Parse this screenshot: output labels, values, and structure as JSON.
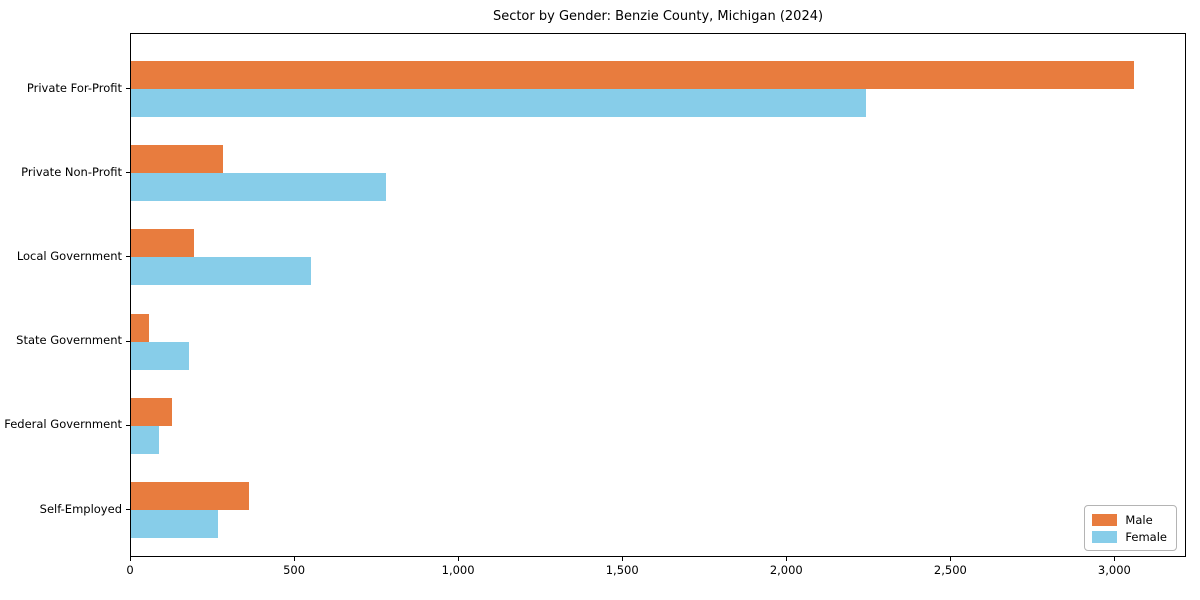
{
  "chart_data": {
    "type": "bar",
    "orientation": "horizontal",
    "title": "Sector by Gender: Benzie County, Michigan (2024)",
    "xlabel": "",
    "ylabel": "",
    "categories": [
      "Private For-Profit",
      "Private Non-Profit",
      "Local Government",
      "State Government",
      "Federal Government",
      "Self-Employed"
    ],
    "series": [
      {
        "name": "Male",
        "color": "#E87C3E",
        "values": [
          3057,
          281,
          192,
          55,
          124,
          358
        ]
      },
      {
        "name": "Female",
        "color": "#87CDE9",
        "values": [
          2239,
          776,
          548,
          176,
          85,
          264
        ]
      }
    ],
    "xlim": [
      0,
      3212
    ],
    "xticks": [
      0,
      500,
      1000,
      1500,
      2000,
      2500,
      3000
    ],
    "xtick_labels": [
      "0",
      "500",
      "1,000",
      "1,500",
      "2,000",
      "2,500",
      "3,000"
    ],
    "legend_position": "lower right",
    "grid": false,
    "frame": true
  }
}
